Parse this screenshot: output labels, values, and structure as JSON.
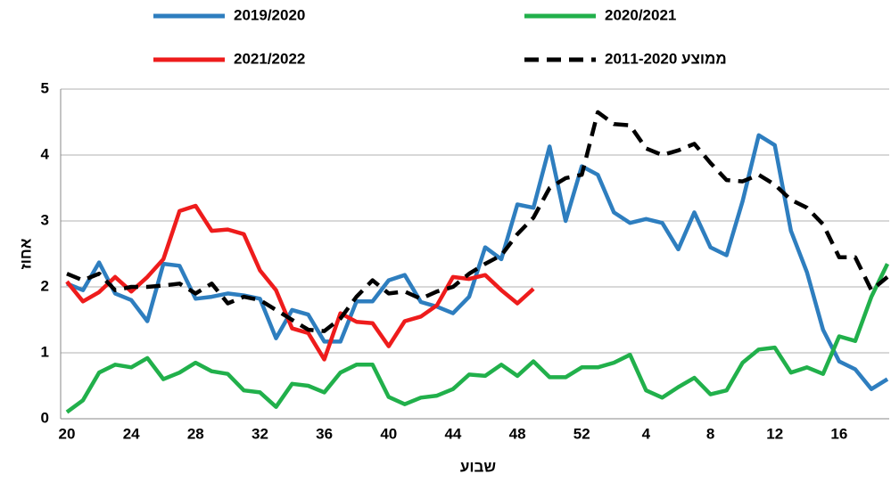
{
  "chart_data": {
    "type": "line",
    "xlabel": "שבוע",
    "ylabel": "אחוז",
    "categories": [
      "20",
      null,
      null,
      null,
      "24",
      null,
      null,
      null,
      "28",
      null,
      null,
      null,
      "32",
      null,
      null,
      null,
      "36",
      null,
      null,
      null,
      "40",
      null,
      null,
      null,
      "44",
      null,
      null,
      null,
      "48",
      null,
      null,
      null,
      "52",
      null,
      null,
      null,
      "4",
      null,
      null,
      null,
      "8",
      null,
      null,
      null,
      "12",
      null,
      null,
      null,
      "16",
      null,
      null,
      null
    ],
    "ylim": [
      0,
      5
    ],
    "yticks": [
      0,
      1,
      2,
      3,
      4,
      5
    ],
    "grid": true,
    "series": [
      {
        "name": "2019/2020",
        "color": "#2e7ebf",
        "dashed": false,
        "values": [
          2.05,
          1.95,
          2.37,
          1.9,
          1.8,
          1.48,
          2.35,
          2.32,
          1.82,
          1.85,
          1.9,
          1.87,
          1.82,
          1.22,
          1.65,
          1.58,
          1.17,
          1.17,
          1.78,
          1.78,
          2.1,
          2.18,
          1.77,
          1.7,
          1.6,
          1.85,
          2.6,
          2.42,
          3.25,
          3.2,
          4.13,
          3.0,
          3.83,
          3.7,
          3.13,
          2.97,
          3.03,
          2.97,
          2.57,
          3.13,
          2.6,
          2.48,
          3.3,
          4.3,
          4.15,
          2.85,
          2.22,
          1.35,
          0.87,
          0.75,
          0.45,
          0.6
        ]
      },
      {
        "name": "2020/2021",
        "color": "#21b04b",
        "dashed": false,
        "values": [
          0.1,
          0.28,
          0.7,
          0.82,
          0.78,
          0.92,
          0.6,
          0.7,
          0.85,
          0.72,
          0.68,
          0.43,
          0.4,
          0.18,
          0.53,
          0.5,
          0.4,
          0.7,
          0.82,
          0.82,
          0.33,
          0.22,
          0.32,
          0.35,
          0.45,
          0.67,
          0.65,
          0.82,
          0.65,
          0.87,
          0.63,
          0.63,
          0.78,
          0.78,
          0.85,
          0.97,
          0.43,
          0.32,
          0.48,
          0.62,
          0.37,
          0.43,
          0.85,
          1.05,
          1.08,
          0.7,
          0.78,
          0.68,
          1.25,
          1.18,
          1.85,
          2.35
        ]
      },
      {
        "name": "2021/2022",
        "color": "#ee1c1c",
        "dashed": false,
        "values": [
          2.08,
          1.78,
          1.92,
          2.15,
          1.93,
          2.15,
          2.42,
          3.15,
          3.23,
          2.85,
          2.87,
          2.8,
          2.25,
          1.95,
          1.37,
          1.3,
          0.9,
          1.6,
          1.47,
          1.45,
          1.1,
          1.48,
          1.55,
          1.72,
          2.15,
          2.12,
          2.18,
          1.95,
          1.75,
          1.97,
          null,
          null,
          null,
          null,
          null,
          null,
          null,
          null,
          null,
          null,
          null,
          null,
          null,
          null,
          null,
          null,
          null,
          null,
          null,
          null,
          null,
          null
        ]
      },
      {
        "name": "ממוצע 2011-2020",
        "color": "#000000",
        "dashed": true,
        "values": [
          2.2,
          2.1,
          2.2,
          1.95,
          2.0,
          2.0,
          2.02,
          2.05,
          1.9,
          2.05,
          1.75,
          1.85,
          1.8,
          1.65,
          1.5,
          1.35,
          1.33,
          1.52,
          1.85,
          2.1,
          1.9,
          1.93,
          1.82,
          1.93,
          2.0,
          2.2,
          2.35,
          2.48,
          2.8,
          3.05,
          3.5,
          3.65,
          3.7,
          4.65,
          4.47,
          4.45,
          4.1,
          4.0,
          4.07,
          4.17,
          3.88,
          3.62,
          3.6,
          3.7,
          3.55,
          3.32,
          3.2,
          2.95,
          2.45,
          2.45,
          1.95,
          2.15
        ]
      }
    ]
  }
}
